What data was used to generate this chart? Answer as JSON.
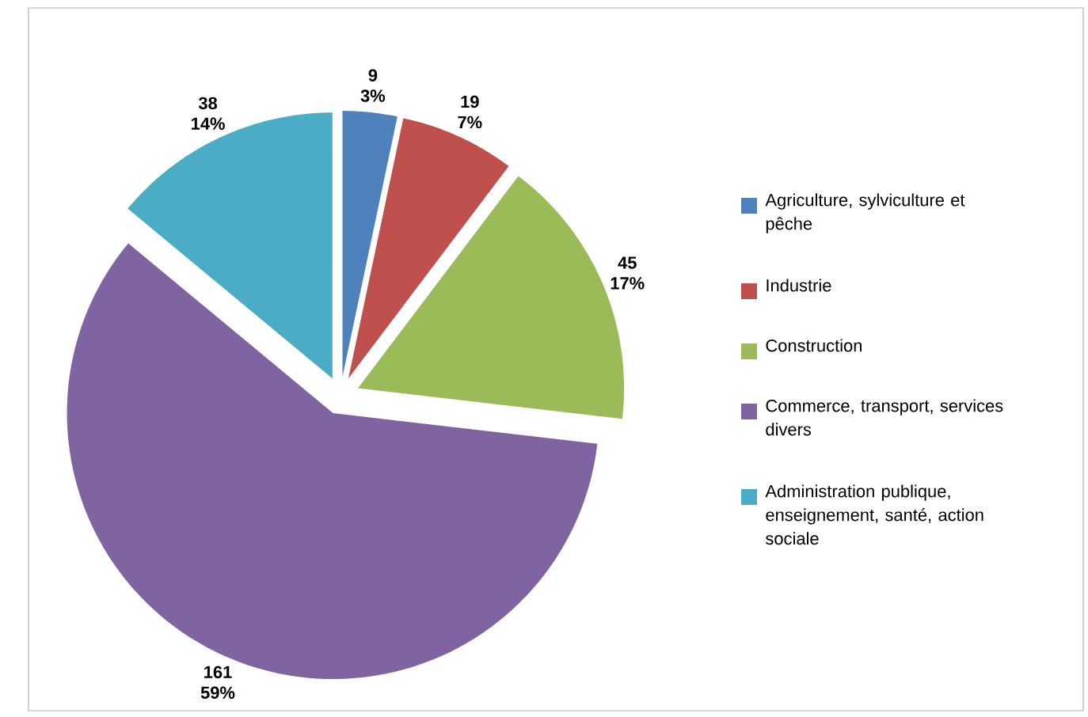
{
  "chart_data": {
    "type": "pie",
    "categories": [
      "Agriculture, sylviculture et pêche",
      "Industrie",
      "Construction",
      "Commerce, transport, services divers",
      "Administration publique, enseignement, santé, action sociale"
    ],
    "values": [
      9,
      19,
      45,
      161,
      38
    ],
    "colors": [
      "#4f81bd",
      "#c0504d",
      "#9bbb59",
      "#8064a2",
      "#4bacc6"
    ],
    "value_labels": [
      "9 3%",
      "19 7%",
      "45 17%",
      "161 59%",
      "38 14%"
    ],
    "legend": "right"
  }
}
